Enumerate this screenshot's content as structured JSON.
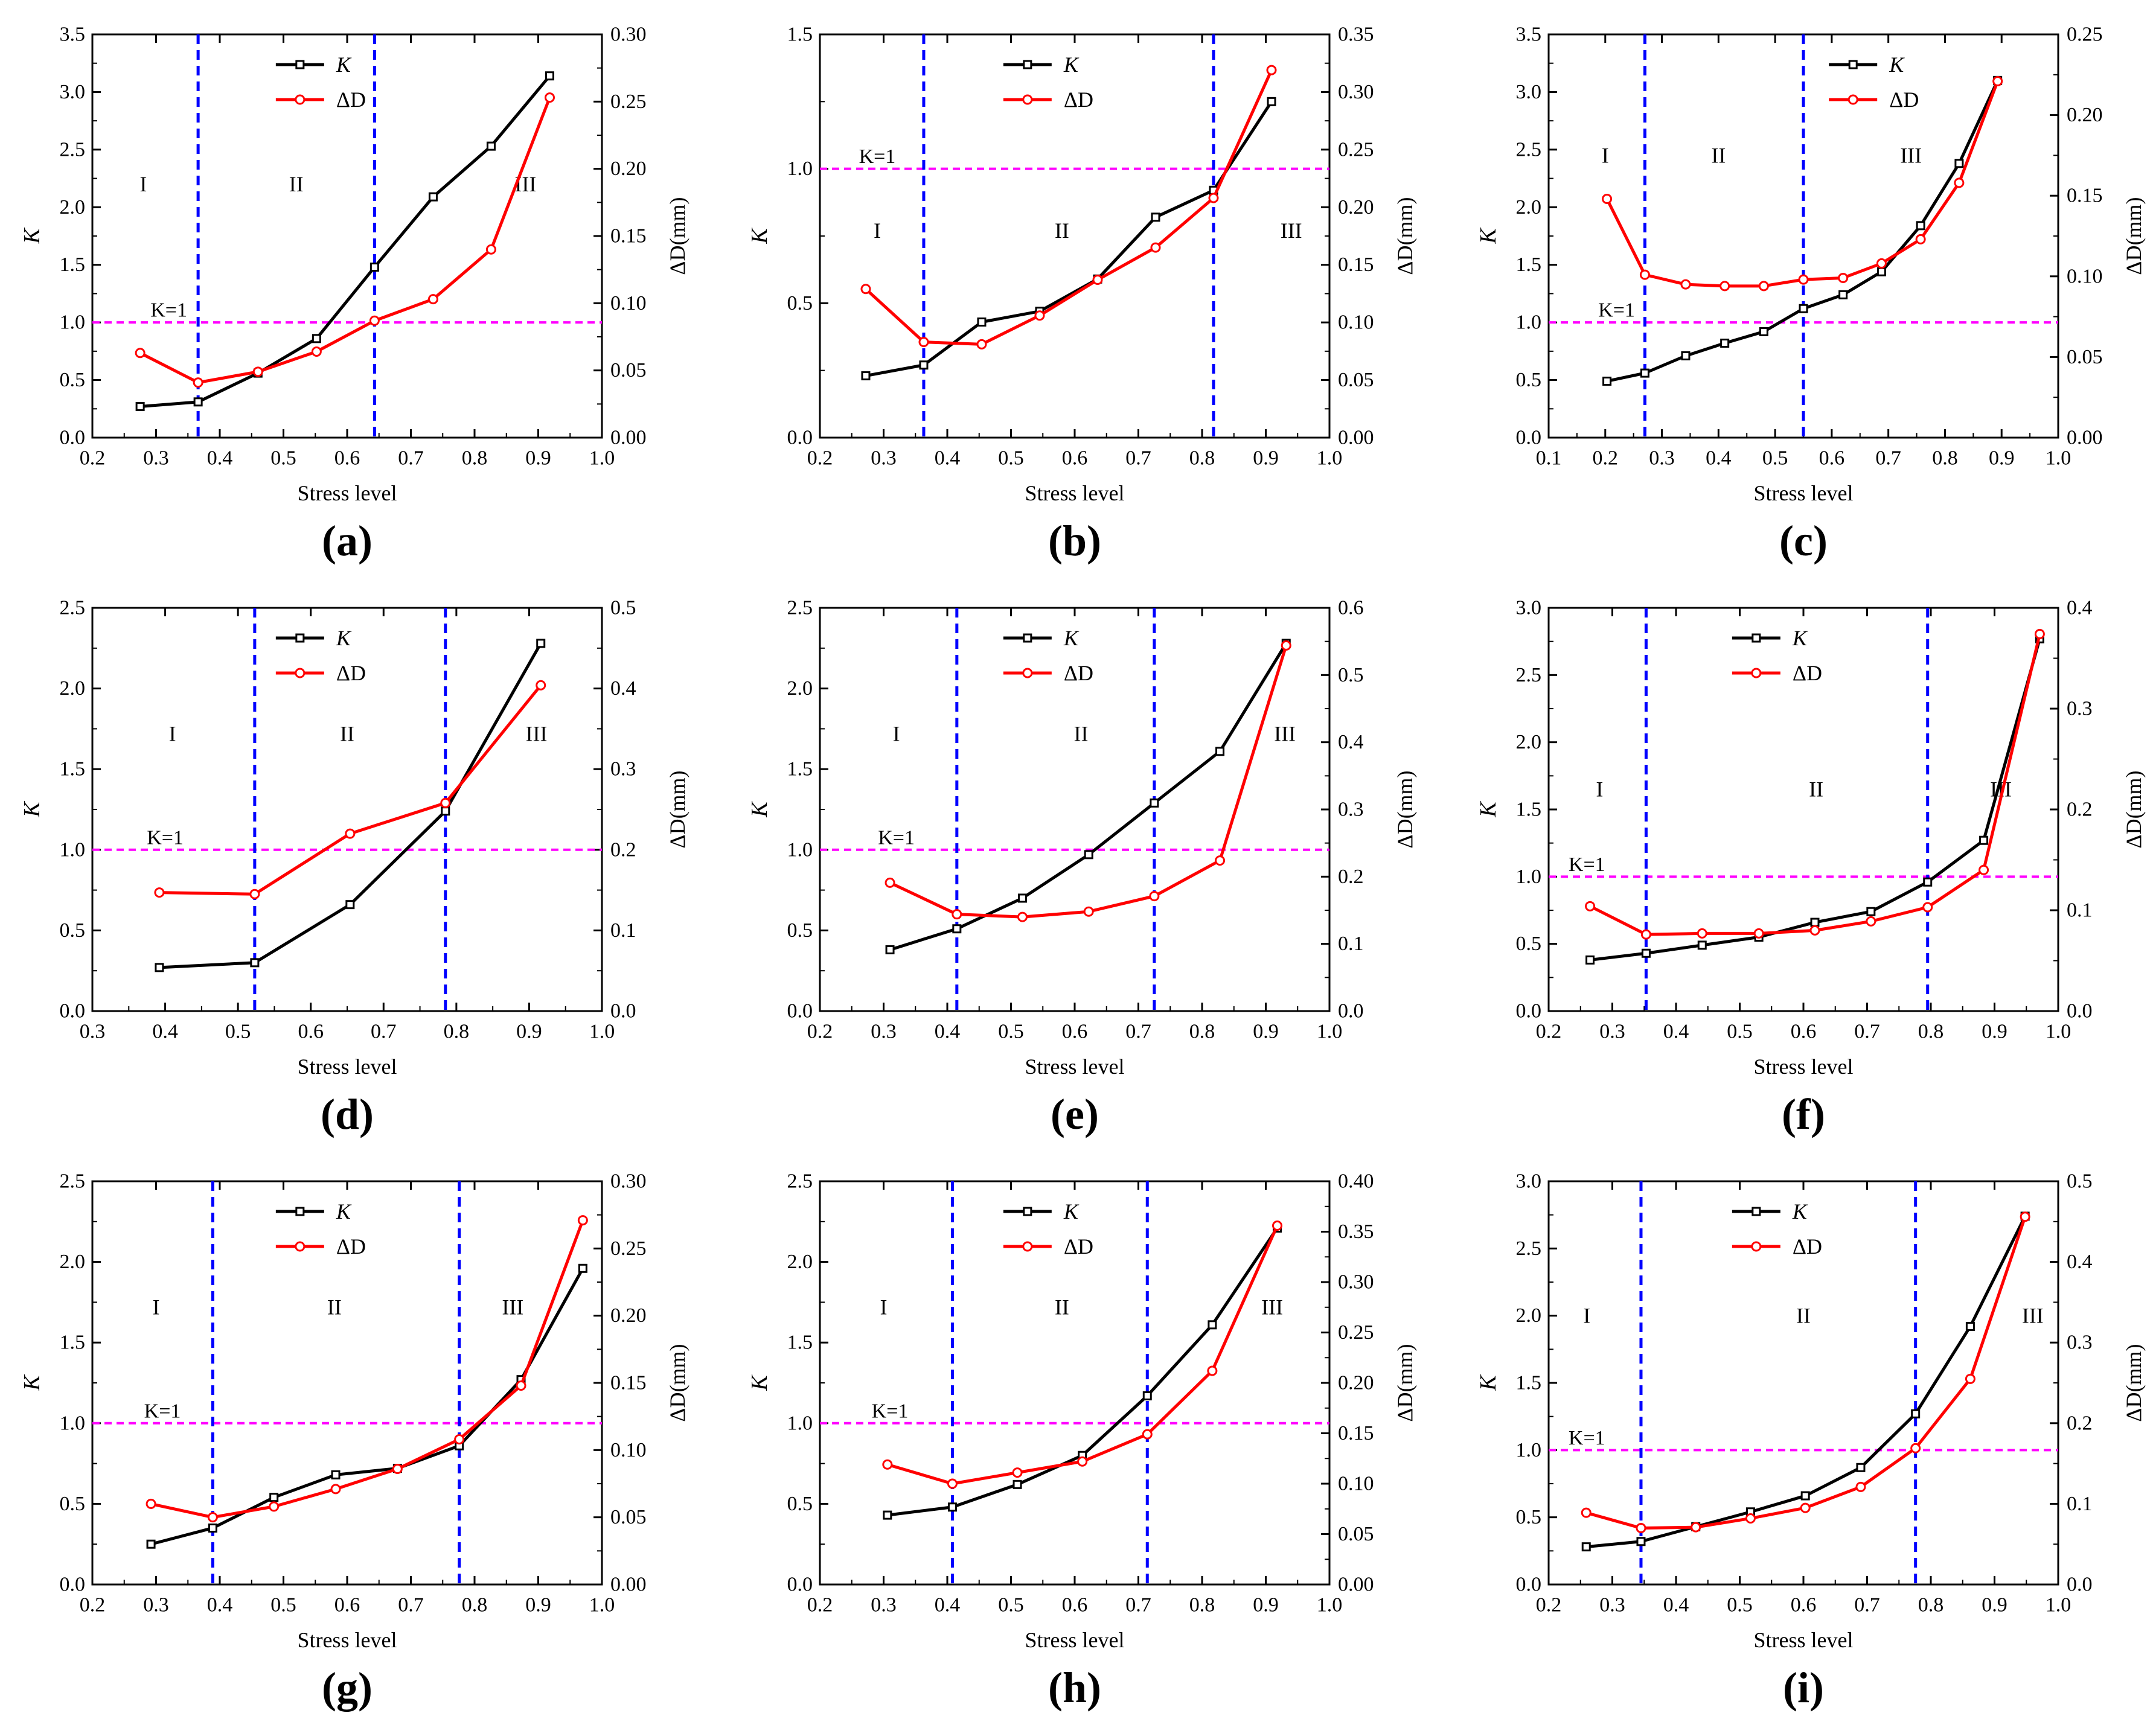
{
  "figure": {
    "x_axis_label": "Stress level",
    "y_left_label": "K",
    "y_right_label": "ΔD(mm)",
    "legend_labels": [
      "K",
      "ΔD"
    ],
    "threshold_label": "K=1",
    "stage_labels": [
      "I",
      "II",
      "III"
    ]
  },
  "colors": {
    "k_line": "#000000",
    "dd_line": "#ff0000",
    "threshold": "#ff00ff",
    "boundary": "#0000ff"
  },
  "chart_data": [
    {
      "panel": "a",
      "caption": "(a)",
      "type": "line",
      "xlim": [
        0.2,
        1.0
      ],
      "xticks": [
        0.2,
        0.3,
        0.4,
        0.5,
        0.6,
        0.7,
        0.8,
        0.9,
        1.0
      ],
      "ylim_left": [
        0,
        3.5
      ],
      "yticks_left": [
        0,
        0.5,
        1.0,
        1.5,
        2.0,
        2.5,
        3.0,
        3.5
      ],
      "ylim_right": [
        0,
        0.3
      ],
      "yticks_right": [
        0,
        0.05,
        0.1,
        0.15,
        0.2,
        0.25,
        0.3
      ],
      "right_decimals": 2,
      "boundaries": [
        0.366,
        0.643
      ],
      "threshold": 1.0,
      "stage_x": [
        0.28,
        0.52,
        0.88
      ],
      "stage_y": 2.2,
      "threshold_label_x": 0.32,
      "legend_pos": "top-center",
      "series": [
        {
          "name": "K",
          "axis": "left",
          "x": [
            0.275,
            0.366,
            0.46,
            0.552,
            0.643,
            0.735,
            0.826,
            0.918
          ],
          "y": [
            0.27,
            0.31,
            0.56,
            0.86,
            1.48,
            2.09,
            2.53,
            3.14
          ]
        },
        {
          "name": "ΔD",
          "axis": "right",
          "x": [
            0.275,
            0.366,
            0.46,
            0.552,
            0.643,
            0.735,
            0.826,
            0.918
          ],
          "y": [
            0.063,
            0.041,
            0.049,
            0.064,
            0.087,
            0.103,
            0.14,
            0.253
          ]
        }
      ]
    },
    {
      "panel": "b",
      "caption": "(b)",
      "type": "line",
      "xlim": [
        0.2,
        1.0
      ],
      "xticks": [
        0.2,
        0.3,
        0.4,
        0.5,
        0.6,
        0.7,
        0.8,
        0.9,
        1.0
      ],
      "ylim_left": [
        0,
        1.5
      ],
      "yticks_left": [
        0,
        0.5,
        1.0,
        1.5
      ],
      "ylim_right": [
        0,
        0.35
      ],
      "yticks_right": [
        0,
        0.05,
        0.1,
        0.15,
        0.2,
        0.25,
        0.3,
        0.35
      ],
      "right_decimals": 2,
      "boundaries": [
        0.363,
        0.818
      ],
      "threshold": 1.0,
      "stage_x": [
        0.29,
        0.58,
        0.94
      ],
      "stage_y": 0.77,
      "threshold_label_x": 0.29,
      "legend_pos": "top-center",
      "series": [
        {
          "name": "K",
          "axis": "left",
          "x": [
            0.272,
            0.363,
            0.454,
            0.545,
            0.636,
            0.727,
            0.818,
            0.909
          ],
          "y": [
            0.23,
            0.27,
            0.43,
            0.47,
            0.59,
            0.82,
            0.92,
            1.25
          ]
        },
        {
          "name": "ΔD",
          "axis": "right",
          "x": [
            0.272,
            0.363,
            0.454,
            0.545,
            0.636,
            0.727,
            0.818,
            0.909
          ],
          "y": [
            0.129,
            0.083,
            0.081,
            0.106,
            0.137,
            0.165,
            0.208,
            0.319
          ]
        }
      ]
    },
    {
      "panel": "c",
      "caption": "(c)",
      "type": "line",
      "xlim": [
        0.1,
        1.0
      ],
      "xticks": [
        0.1,
        0.2,
        0.3,
        0.4,
        0.5,
        0.6,
        0.7,
        0.8,
        0.9,
        1.0
      ],
      "ylim_left": [
        0,
        3.5
      ],
      "yticks_left": [
        0,
        0.5,
        1.0,
        1.5,
        2.0,
        2.5,
        3.0,
        3.5
      ],
      "ylim_right": [
        0,
        0.25
      ],
      "yticks_right": [
        0,
        0.05,
        0.1,
        0.15,
        0.2,
        0.25
      ],
      "right_decimals": 2,
      "boundaries": [
        0.27,
        0.55
      ],
      "threshold": 1.0,
      "stage_x": [
        0.2,
        0.4,
        0.74
      ],
      "stage_y": 2.45,
      "threshold_label_x": 0.22,
      "legend_pos": "top-right",
      "series": [
        {
          "name": "K",
          "axis": "left",
          "x": [
            0.203,
            0.27,
            0.342,
            0.411,
            0.48,
            0.55,
            0.62,
            0.688,
            0.757,
            0.825,
            0.893
          ],
          "y": [
            0.49,
            0.56,
            0.71,
            0.82,
            0.92,
            1.12,
            1.24,
            1.44,
            1.84,
            2.38,
            3.1
          ]
        },
        {
          "name": "ΔD",
          "axis": "right",
          "x": [
            0.203,
            0.27,
            0.342,
            0.411,
            0.48,
            0.55,
            0.62,
            0.688,
            0.757,
            0.825,
            0.893
          ],
          "y": [
            0.148,
            0.101,
            0.095,
            0.094,
            0.094,
            0.098,
            0.099,
            0.108,
            0.123,
            0.158,
            0.221
          ]
        }
      ]
    },
    {
      "panel": "d",
      "caption": "(d)",
      "type": "line",
      "xlim": [
        0.3,
        1.0
      ],
      "xticks": [
        0.3,
        0.4,
        0.5,
        0.6,
        0.7,
        0.8,
        0.9,
        1.0
      ],
      "ylim_left": [
        0,
        2.5
      ],
      "yticks_left": [
        0,
        0.5,
        1.0,
        1.5,
        2.0,
        2.5
      ],
      "ylim_right": [
        0,
        0.5
      ],
      "yticks_right": [
        0,
        0.1,
        0.2,
        0.3,
        0.4,
        0.5
      ],
      "right_decimals": 1,
      "boundaries": [
        0.523,
        0.785
      ],
      "threshold": 1.0,
      "stage_x": [
        0.41,
        0.65,
        0.91
      ],
      "stage_y": 1.72,
      "threshold_label_x": 0.4,
      "legend_pos": "top-center",
      "series": [
        {
          "name": "K",
          "axis": "left",
          "x": [
            0.392,
            0.523,
            0.654,
            0.785,
            0.916
          ],
          "y": [
            0.27,
            0.3,
            0.66,
            1.24,
            2.28
          ]
        },
        {
          "name": "ΔD",
          "axis": "right",
          "x": [
            0.392,
            0.523,
            0.654,
            0.785,
            0.916
          ],
          "y": [
            0.147,
            0.145,
            0.22,
            0.258,
            0.404
          ]
        }
      ]
    },
    {
      "panel": "e",
      "caption": "(e)",
      "type": "line",
      "xlim": [
        0.2,
        1.0
      ],
      "xticks": [
        0.2,
        0.3,
        0.4,
        0.5,
        0.6,
        0.7,
        0.8,
        0.9,
        1.0
      ],
      "ylim_left": [
        0,
        2.5
      ],
      "yticks_left": [
        0,
        0.5,
        1.0,
        1.5,
        2.0,
        2.5
      ],
      "ylim_right": [
        0,
        0.6
      ],
      "yticks_right": [
        0,
        0.1,
        0.2,
        0.3,
        0.4,
        0.5,
        0.6
      ],
      "right_decimals": 1,
      "boundaries": [
        0.415,
        0.725
      ],
      "threshold": 1.0,
      "stage_x": [
        0.32,
        0.61,
        0.93
      ],
      "stage_y": 1.72,
      "threshold_label_x": 0.32,
      "legend_pos": "top-center",
      "series": [
        {
          "name": "K",
          "axis": "left",
          "x": [
            0.31,
            0.415,
            0.518,
            0.622,
            0.725,
            0.828,
            0.932
          ],
          "y": [
            0.38,
            0.51,
            0.7,
            0.97,
            1.29,
            1.61,
            2.28
          ]
        },
        {
          "name": "ΔD",
          "axis": "right",
          "x": [
            0.31,
            0.415,
            0.518,
            0.622,
            0.725,
            0.828,
            0.932
          ],
          "y": [
            0.191,
            0.144,
            0.14,
            0.148,
            0.171,
            0.224,
            0.544
          ]
        }
      ]
    },
    {
      "panel": "f",
      "caption": "(f)",
      "type": "line",
      "xlim": [
        0.2,
        1.0
      ],
      "xticks": [
        0.2,
        0.3,
        0.4,
        0.5,
        0.6,
        0.7,
        0.8,
        0.9,
        1.0
      ],
      "ylim_left": [
        0,
        3.0
      ],
      "yticks_left": [
        0,
        0.5,
        1.0,
        1.5,
        2.0,
        2.5,
        3.0
      ],
      "ylim_right": [
        0,
        0.4
      ],
      "yticks_right": [
        0,
        0.1,
        0.2,
        0.3,
        0.4
      ],
      "right_decimals": 1,
      "boundaries": [
        0.353,
        0.795
      ],
      "threshold": 1.0,
      "stage_x": [
        0.28,
        0.62,
        0.91
      ],
      "stage_y": 1.65,
      "threshold_label_x": 0.26,
      "legend_pos": "top-center",
      "series": [
        {
          "name": "K",
          "axis": "left",
          "x": [
            0.265,
            0.353,
            0.441,
            0.53,
            0.618,
            0.706,
            0.795,
            0.883,
            0.971
          ],
          "y": [
            0.38,
            0.43,
            0.49,
            0.55,
            0.66,
            0.74,
            0.96,
            1.27,
            2.77
          ]
        },
        {
          "name": "ΔD",
          "axis": "right",
          "x": [
            0.265,
            0.353,
            0.441,
            0.53,
            0.618,
            0.706,
            0.795,
            0.883,
            0.971
          ],
          "y": [
            0.104,
            0.076,
            0.077,
            0.077,
            0.08,
            0.089,
            0.103,
            0.14,
            0.374
          ]
        }
      ]
    },
    {
      "panel": "g",
      "caption": "(g)",
      "type": "line",
      "xlim": [
        0.2,
        1.0
      ],
      "xticks": [
        0.2,
        0.3,
        0.4,
        0.5,
        0.6,
        0.7,
        0.8,
        0.9,
        1.0
      ],
      "ylim_left": [
        0,
        2.5
      ],
      "yticks_left": [
        0,
        0.5,
        1.0,
        1.5,
        2.0,
        2.5
      ],
      "ylim_right": [
        0,
        0.3
      ],
      "yticks_right": [
        0,
        0.05,
        0.1,
        0.15,
        0.2,
        0.25,
        0.3
      ],
      "right_decimals": 2,
      "boundaries": [
        0.389,
        0.776
      ],
      "threshold": 1.0,
      "stage_x": [
        0.3,
        0.58,
        0.86
      ],
      "stage_y": 1.72,
      "threshold_label_x": 0.31,
      "legend_pos": "top-center",
      "series": [
        {
          "name": "K",
          "axis": "left",
          "x": [
            0.292,
            0.389,
            0.485,
            0.582,
            0.679,
            0.776,
            0.873,
            0.97
          ],
          "y": [
            0.25,
            0.35,
            0.54,
            0.68,
            0.72,
            0.86,
            1.27,
            1.96
          ]
        },
        {
          "name": "ΔD",
          "axis": "right",
          "x": [
            0.292,
            0.389,
            0.485,
            0.582,
            0.679,
            0.776,
            0.873,
            0.97
          ],
          "y": [
            0.06,
            0.05,
            0.058,
            0.071,
            0.086,
            0.108,
            0.148,
            0.271
          ]
        }
      ]
    },
    {
      "panel": "h",
      "caption": "(h)",
      "type": "line",
      "xlim": [
        0.2,
        1.0
      ],
      "xticks": [
        0.2,
        0.3,
        0.4,
        0.5,
        0.6,
        0.7,
        0.8,
        0.9,
        1.0
      ],
      "ylim_left": [
        0,
        2.5
      ],
      "yticks_left": [
        0,
        0.5,
        1.0,
        1.5,
        2.0,
        2.5
      ],
      "ylim_right": [
        0,
        0.4
      ],
      "yticks_right": [
        0,
        0.05,
        0.1,
        0.15,
        0.2,
        0.25,
        0.3,
        0.35,
        0.4
      ],
      "right_decimals": 2,
      "boundaries": [
        0.408,
        0.714
      ],
      "threshold": 1.0,
      "stage_x": [
        0.3,
        0.58,
        0.91
      ],
      "stage_y": 1.72,
      "threshold_label_x": 0.31,
      "legend_pos": "top-center",
      "series": [
        {
          "name": "K",
          "axis": "left",
          "x": [
            0.306,
            0.408,
            0.51,
            0.612,
            0.714,
            0.816,
            0.918
          ],
          "y": [
            0.43,
            0.48,
            0.62,
            0.8,
            1.17,
            1.61,
            2.21
          ]
        },
        {
          "name": "ΔD",
          "axis": "right",
          "x": [
            0.306,
            0.408,
            0.51,
            0.612,
            0.714,
            0.816,
            0.918
          ],
          "y": [
            0.119,
            0.1,
            0.111,
            0.122,
            0.149,
            0.212,
            0.356
          ]
        }
      ]
    },
    {
      "panel": "i",
      "caption": "(i)",
      "type": "line",
      "xlim": [
        0.2,
        1.0
      ],
      "xticks": [
        0.2,
        0.3,
        0.4,
        0.5,
        0.6,
        0.7,
        0.8,
        0.9,
        1.0
      ],
      "ylim_left": [
        0,
        3.0
      ],
      "yticks_left": [
        0,
        0.5,
        1.0,
        1.5,
        2.0,
        2.5,
        3.0
      ],
      "ylim_right": [
        0,
        0.5
      ],
      "yticks_right": [
        0,
        0.1,
        0.2,
        0.3,
        0.4,
        0.5
      ],
      "right_decimals": 1,
      "boundaries": [
        0.345,
        0.776
      ],
      "threshold": 1.0,
      "stage_x": [
        0.26,
        0.6,
        0.96
      ],
      "stage_y": 2.0,
      "threshold_label_x": 0.26,
      "legend_pos": "top-center",
      "series": [
        {
          "name": "K",
          "axis": "left",
          "x": [
            0.259,
            0.345,
            0.431,
            0.517,
            0.603,
            0.69,
            0.776,
            0.862,
            0.948
          ],
          "y": [
            0.28,
            0.32,
            0.43,
            0.54,
            0.66,
            0.87,
            1.27,
            1.92,
            2.74
          ]
        },
        {
          "name": "ΔD",
          "axis": "right",
          "x": [
            0.259,
            0.345,
            0.431,
            0.517,
            0.603,
            0.69,
            0.776,
            0.862,
            0.948
          ],
          "y": [
            0.089,
            0.07,
            0.071,
            0.082,
            0.095,
            0.121,
            0.169,
            0.255,
            0.456
          ]
        }
      ]
    }
  ]
}
